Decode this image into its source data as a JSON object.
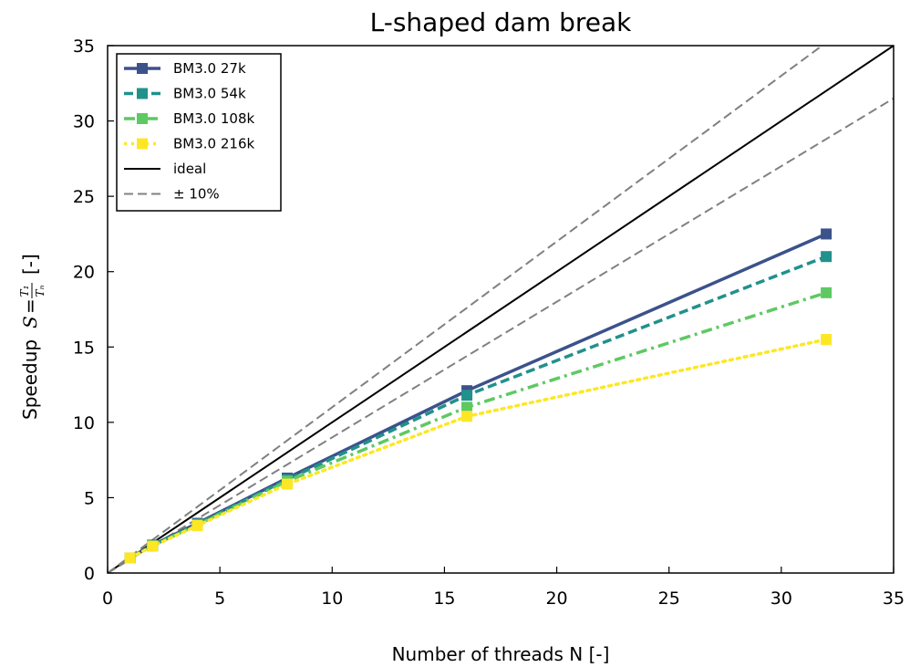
{
  "chart_data": {
    "type": "line",
    "title": "L-shaped dam break",
    "xlabel": "Number of threads N [-]",
    "ylabel_text": "Speedup",
    "ylabel_formula": {
      "S": "S",
      "eq": "=",
      "numerator": "T₁",
      "denominator": "Tₙ",
      "unit": "[-]"
    },
    "xlim": [
      0,
      35
    ],
    "ylim": [
      0,
      35
    ],
    "xticks": [
      0,
      5,
      10,
      15,
      20,
      25,
      30,
      35
    ],
    "yticks": [
      0,
      5,
      10,
      15,
      20,
      25,
      30,
      35
    ],
    "grid": false,
    "legend_position": "top-left",
    "x": [
      1,
      2,
      4,
      8,
      16,
      32
    ],
    "series": [
      {
        "name": "BM3.0 27k",
        "values": [
          1.0,
          1.85,
          3.3,
          6.3,
          12.1,
          22.5
        ],
        "color": "#3b528b",
        "dash": "solid",
        "marker": "square"
      },
      {
        "name": "BM3.0 54k",
        "values": [
          1.0,
          1.82,
          3.25,
          6.2,
          11.8,
          21.0
        ],
        "color": "#21918c",
        "dash": "dashed",
        "marker": "square"
      },
      {
        "name": "BM3.0 108k",
        "values": [
          1.0,
          1.8,
          3.2,
          6.1,
          11.0,
          18.6
        ],
        "color": "#5ec962",
        "dash": "dashdot",
        "marker": "square"
      },
      {
        "name": "BM3.0 216k",
        "values": [
          1.0,
          1.78,
          3.15,
          5.9,
          10.4,
          15.5
        ],
        "color": "#fde725",
        "dash": "dotted",
        "marker": "square"
      }
    ],
    "reference_lines": [
      {
        "name": "ideal",
        "slope": 1.0,
        "color": "#000000",
        "dash": "solid"
      },
      {
        "name": "± 10%",
        "slope": 1.1,
        "color": "#808080",
        "dash": "dashed"
      },
      {
        "name": "",
        "slope": 0.9,
        "color": "#808080",
        "dash": "dashed"
      }
    ]
  }
}
